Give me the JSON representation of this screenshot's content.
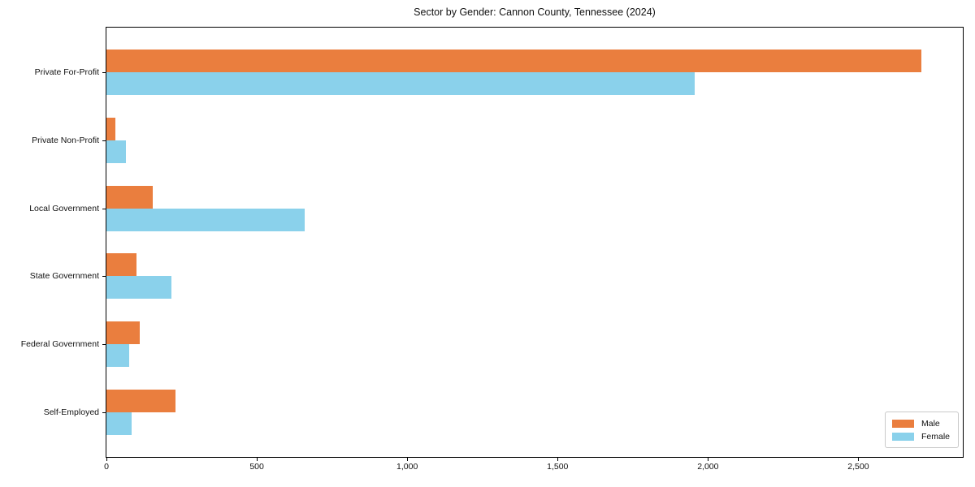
{
  "chart_data": {
    "type": "bar",
    "orientation": "horizontal",
    "title": "Sector by Gender: Cannon County, Tennessee (2024)",
    "categories": [
      "Private For-Profit",
      "Private Non-Profit",
      "Local Government",
      "State Government",
      "Federal Government",
      "Self-Employed"
    ],
    "series": [
      {
        "name": "Male",
        "color": "#ea7e3e",
        "values": [
          2710,
          30,
          155,
          100,
          112,
          230
        ]
      },
      {
        "name": "Female",
        "color": "#8ad1eb",
        "values": [
          1955,
          65,
          660,
          215,
          75,
          85
        ]
      }
    ],
    "xlabel": "",
    "ylabel": "",
    "xlim": [
      0,
      2850
    ],
    "xticks": [
      0,
      500,
      1000,
      1500,
      2000,
      2500
    ],
    "xtick_labels": [
      "0",
      "500",
      "1,000",
      "1,500",
      "2,000",
      "2,500"
    ],
    "grid": false,
    "legend_position": "lower right",
    "legend_border_color": "#c9c9c9"
  }
}
